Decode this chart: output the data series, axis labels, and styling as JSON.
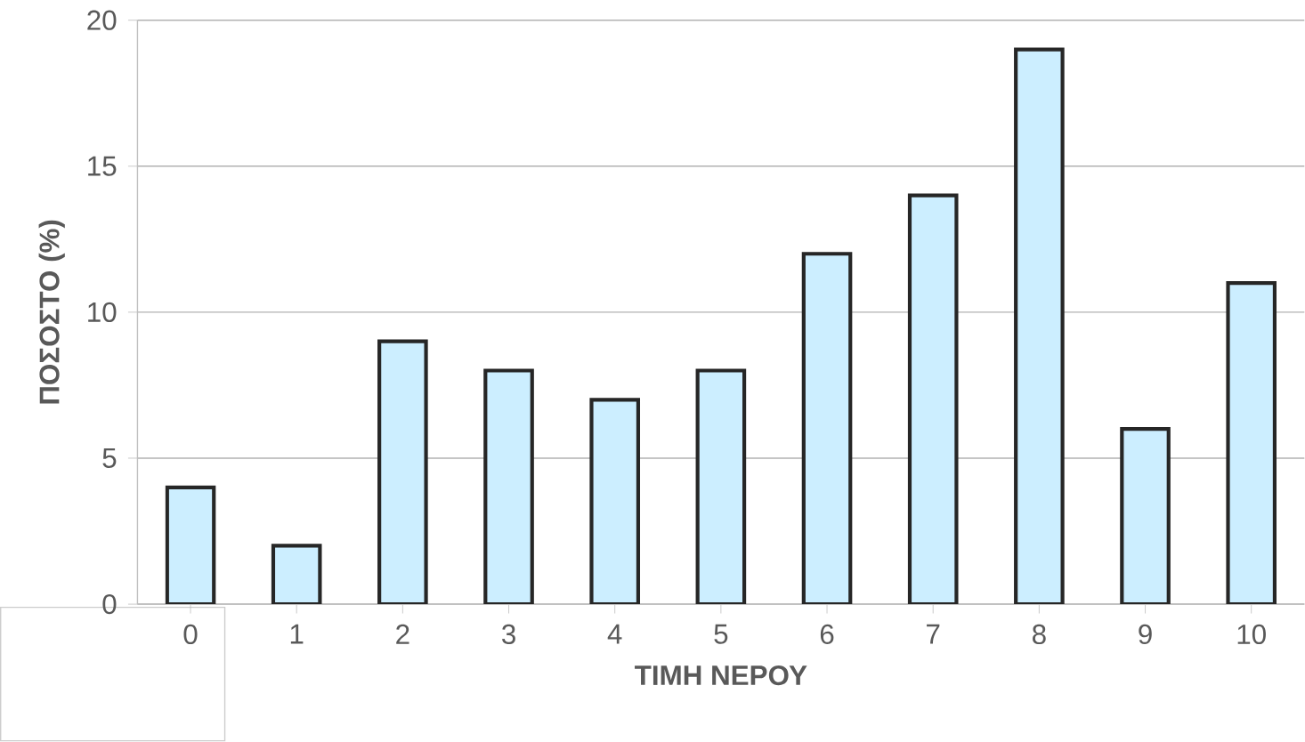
{
  "chart_data": {
    "type": "bar",
    "xlabel": "ΤΙΜΗ ΝΕΡΟΥ",
    "ylabel": "ΠΟΣΟΣΤΟ (%)",
    "categories": [
      "0",
      "1",
      "2",
      "3",
      "4",
      "5",
      "6",
      "7",
      "8",
      "9",
      "10"
    ],
    "values": [
      4,
      2,
      9,
      8,
      7,
      8,
      12,
      14,
      19,
      6,
      11
    ],
    "color": "#cceeff",
    "ylim": [
      0,
      20
    ],
    "yticks": [
      0,
      5,
      10,
      15,
      20
    ],
    "grid": "y"
  }
}
